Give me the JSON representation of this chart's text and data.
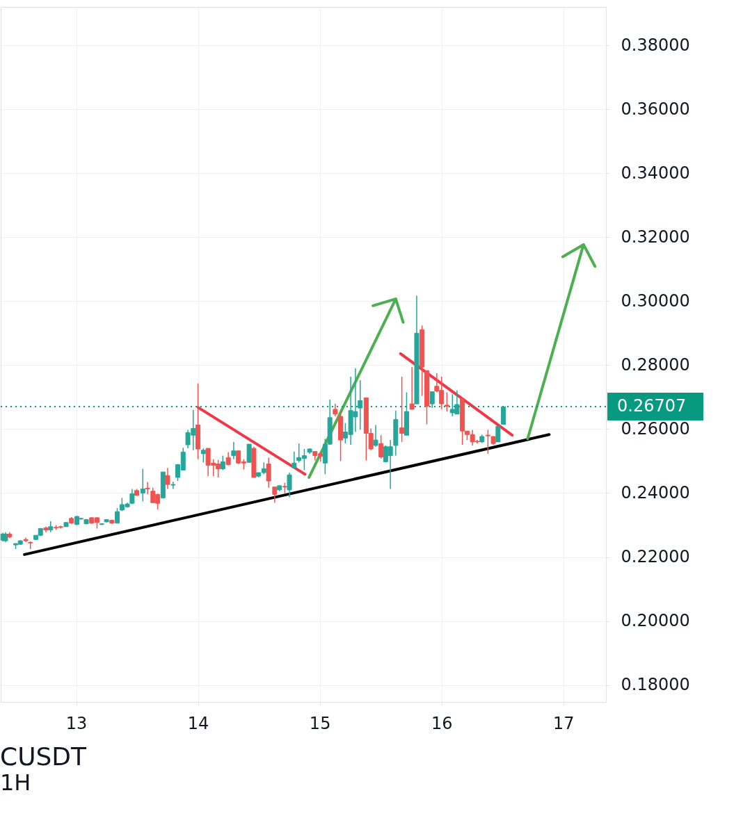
{
  "chart_data": {
    "type": "candlestick",
    "title": "CUSDT",
    "subtitle": "1H",
    "xlim": [
      12.38,
      17.35
    ],
    "xticks": [
      13,
      14,
      15,
      16,
      17
    ],
    "ylim": [
      0.1747,
      0.392
    ],
    "yticks": [
      {
        "value": 0.18,
        "label": "0.18000"
      },
      {
        "value": 0.2,
        "label": "0.20000"
      },
      {
        "value": 0.22,
        "label": "0.22000"
      },
      {
        "value": 0.24,
        "label": "0.24000"
      },
      {
        "value": 0.26,
        "label": "0.26000"
      },
      {
        "value": 0.28,
        "label": "0.28000"
      },
      {
        "value": 0.3,
        "label": "0.30000"
      },
      {
        "value": 0.32,
        "label": "0.32000"
      },
      {
        "value": 0.34,
        "label": "0.34000"
      },
      {
        "value": 0.36,
        "label": "0.36000"
      },
      {
        "value": 0.38,
        "label": "0.38000"
      }
    ],
    "grid": true,
    "x": [
      12.398,
      12.42,
      12.453,
      12.503,
      12.541,
      12.586,
      12.624,
      12.669,
      12.707,
      12.751,
      12.79,
      12.834,
      12.873,
      12.917,
      12.961,
      13.006,
      13.039,
      13.083,
      13.127,
      13.171,
      13.21,
      13.249,
      13.293,
      13.337,
      13.376,
      13.42,
      13.459,
      13.497,
      13.547,
      13.586,
      13.63,
      13.669,
      13.713,
      13.751,
      13.796,
      13.834,
      13.878,
      13.917,
      13.961,
      14.0,
      14.044,
      14.083,
      14.127,
      14.166,
      14.204,
      14.249,
      14.293,
      14.332,
      14.376,
      14.42,
      14.459,
      14.497,
      14.541,
      14.58,
      14.63,
      14.669,
      14.713,
      14.751,
      14.79,
      14.829,
      14.873,
      14.917,
      14.961,
      15.006,
      15.044,
      15.083,
      15.127,
      15.171,
      15.21,
      15.254,
      15.293,
      15.332,
      15.381,
      15.42,
      15.459,
      15.503,
      15.541,
      15.58,
      15.624,
      15.674,
      15.713,
      15.757,
      15.796,
      15.84,
      15.879,
      15.923,
      15.961,
      16.0,
      16.044,
      16.089,
      16.127,
      16.171,
      16.21,
      16.254,
      16.293,
      16.332,
      16.381,
      16.425,
      16.464,
      16.508
    ],
    "ohlc": [
      [
        0.2253,
        0.2276,
        0.2249,
        0.2272
      ],
      [
        0.2251,
        0.2278,
        0.2246,
        0.2272
      ],
      [
        0.2272,
        0.2278,
        0.2259,
        0.2263
      ],
      [
        0.2238,
        0.2244,
        0.2225,
        0.2242
      ],
      [
        0.224,
        0.2253,
        0.2238,
        0.2251
      ],
      [
        0.2255,
        0.2261,
        0.2246,
        0.2251
      ],
      [
        0.2246,
        0.2249,
        0.2225,
        0.2244
      ],
      [
        0.2255,
        0.2268,
        0.2253,
        0.2268
      ],
      [
        0.2268,
        0.2291,
        0.2266,
        0.2289
      ],
      [
        0.2291,
        0.2295,
        0.2278,
        0.2285
      ],
      [
        0.2285,
        0.2312,
        0.2278,
        0.2295
      ],
      [
        0.2293,
        0.23,
        0.2285,
        0.2291
      ],
      [
        0.2295,
        0.2298,
        0.2289,
        0.2293
      ],
      [
        0.2295,
        0.231,
        0.2295,
        0.2308
      ],
      [
        0.2321,
        0.2325,
        0.2304,
        0.2306
      ],
      [
        0.2302,
        0.2329,
        0.23,
        0.2327
      ],
      [
        0.2319,
        0.2323,
        0.2317,
        0.2321
      ],
      [
        0.2304,
        0.2319,
        0.2302,
        0.2317
      ],
      [
        0.2323,
        0.2325,
        0.2304,
        0.2306
      ],
      [
        0.2323,
        0.2325,
        0.2289,
        0.2308
      ],
      [
        0.2302,
        0.2306,
        0.23,
        0.2304
      ],
      [
        0.231,
        0.2317,
        0.2308,
        0.2317
      ],
      [
        0.2315,
        0.2317,
        0.2304,
        0.2306
      ],
      [
        0.2306,
        0.2353,
        0.2306,
        0.2342
      ],
      [
        0.2347,
        0.2385,
        0.2344,
        0.2364
      ],
      [
        0.2357,
        0.237,
        0.2355,
        0.2366
      ],
      [
        0.2368,
        0.2413,
        0.2366,
        0.2398
      ],
      [
        0.2408,
        0.2413,
        0.2391,
        0.2393
      ],
      [
        0.24,
        0.2476,
        0.2374,
        0.2413
      ],
      [
        0.2415,
        0.2434,
        0.2396,
        0.2413
      ],
      [
        0.2406,
        0.2417,
        0.237,
        0.237
      ],
      [
        0.2396,
        0.2398,
        0.2349,
        0.2368
      ],
      [
        0.2385,
        0.2466,
        0.2385,
        0.2466
      ],
      [
        0.2455,
        0.2479,
        0.2413,
        0.2427
      ],
      [
        0.2425,
        0.2436,
        0.2413,
        0.2427
      ],
      [
        0.2449,
        0.2491,
        0.2438,
        0.2489
      ],
      [
        0.2472,
        0.2542,
        0.2472,
        0.2528
      ],
      [
        0.2551,
        0.2598,
        0.254,
        0.2589
      ],
      [
        0.2581,
        0.266,
        0.2534,
        0.2602
      ],
      [
        0.2613,
        0.2743,
        0.2506,
        0.2538
      ],
      [
        0.2523,
        0.254,
        0.2496,
        0.2534
      ],
      [
        0.254,
        0.254,
        0.2453,
        0.2487
      ],
      [
        0.2494,
        0.2506,
        0.2453,
        0.2487
      ],
      [
        0.2491,
        0.2504,
        0.2449,
        0.2476
      ],
      [
        0.2476,
        0.2517,
        0.2472,
        0.2498
      ],
      [
        0.2511,
        0.2528,
        0.2487,
        0.2489
      ],
      [
        0.2517,
        0.256,
        0.2506,
        0.2532
      ],
      [
        0.2532,
        0.2532,
        0.2491,
        0.2494
      ],
      [
        0.2498,
        0.2506,
        0.2474,
        0.2494
      ],
      [
        0.2496,
        0.2553,
        0.2496,
        0.2553
      ],
      [
        0.254,
        0.2545,
        0.2449,
        0.2449
      ],
      [
        0.2453,
        0.2464,
        0.2449,
        0.2464
      ],
      [
        0.2464,
        0.2496,
        0.2459,
        0.2476
      ],
      [
        0.2491,
        0.2511,
        0.2417,
        0.2438
      ],
      [
        0.2419,
        0.2419,
        0.237,
        0.2396
      ],
      [
        0.241,
        0.2425,
        0.2406,
        0.2423
      ],
      [
        0.2421,
        0.2432,
        0.24,
        0.2419
      ],
      [
        0.241,
        0.2464,
        0.2387,
        0.2457
      ],
      [
        0.2479,
        0.253,
        0.2476,
        0.2494
      ],
      [
        0.2502,
        0.2555,
        0.2496,
        0.2511
      ],
      [
        0.2508,
        0.2538,
        0.2472,
        0.2517
      ],
      [
        0.2528,
        0.254,
        0.2523,
        0.2538
      ],
      [
        0.253,
        0.253,
        0.2502,
        0.2517
      ],
      [
        0.2523,
        0.2528,
        0.2498,
        0.2515
      ],
      [
        0.2494,
        0.257,
        0.2459,
        0.2553
      ],
      [
        0.2553,
        0.2692,
        0.2551,
        0.2636
      ],
      [
        0.2662,
        0.2679,
        0.264,
        0.2647
      ],
      [
        0.264,
        0.2658,
        0.25,
        0.2566
      ],
      [
        0.2572,
        0.2619,
        0.2555,
        0.2591
      ],
      [
        0.2583,
        0.2764,
        0.2551,
        0.2658
      ],
      [
        0.2638,
        0.279,
        0.2591,
        0.2655
      ],
      [
        0.2666,
        0.2753,
        0.2598,
        0.2689
      ],
      [
        0.2698,
        0.2698,
        0.2502,
        0.2587
      ],
      [
        0.2587,
        0.2602,
        0.2534,
        0.2538
      ],
      [
        0.2549,
        0.2613,
        0.2545,
        0.2566
      ],
      [
        0.2555,
        0.2581,
        0.2508,
        0.2513
      ],
      [
        0.2498,
        0.2549,
        0.2498,
        0.2545
      ],
      [
        0.2517,
        0.2566,
        0.2413,
        0.2545
      ],
      [
        0.2549,
        0.2658,
        0.2517,
        0.263
      ],
      [
        0.2604,
        0.2764,
        0.256,
        0.2587
      ],
      [
        0.2581,
        0.2715,
        0.2581,
        0.2655
      ],
      [
        0.2679,
        0.2794,
        0.2662,
        0.2662
      ],
      [
        0.2679,
        0.3017,
        0.2679,
        0.29
      ],
      [
        0.2911,
        0.2924,
        0.2704,
        0.2794
      ],
      [
        0.2783,
        0.2783,
        0.2615,
        0.2672
      ],
      [
        0.2679,
        0.2717,
        0.2666,
        0.2717
      ],
      [
        0.2734,
        0.2775,
        0.2715,
        0.2719
      ],
      [
        0.2721,
        0.2764,
        0.2662,
        0.2679
      ],
      [
        0.2675,
        0.2715,
        0.2655,
        0.2672
      ],
      [
        0.2651,
        0.2709,
        0.264,
        0.2662
      ],
      [
        0.2647,
        0.2721,
        0.2647,
        0.2677
      ],
      [
        0.2696,
        0.2696,
        0.2551,
        0.2594
      ],
      [
        0.2594,
        0.2594,
        0.2566,
        0.2583
      ],
      [
        0.2583,
        0.2598,
        0.2549,
        0.256
      ],
      [
        0.2562,
        0.2566,
        0.2555,
        0.256
      ],
      [
        0.256,
        0.2583,
        0.2557,
        0.2577
      ],
      [
        0.2581,
        0.2598,
        0.2523,
        0.2579
      ],
      [
        0.2577,
        0.2577,
        0.2551,
        0.2555
      ],
      [
        0.256,
        0.2609,
        0.256,
        0.2609
      ],
      [
        0.2615,
        0.267,
        0.2615,
        0.267
      ]
    ],
    "colors": [
      "#26a69a",
      "#26a69a",
      "#ef5350",
      "#26a69a",
      "#26a69a",
      "#ef5350",
      "#ef5350",
      "#26a69a",
      "#26a69a",
      "#ef5350",
      "#26a69a",
      "#ef5350",
      "#ef5350",
      "#26a69a",
      "#ef5350",
      "#26a69a",
      "#26a69a",
      "#26a69a",
      "#ef5350",
      "#ef5350",
      "#26a69a",
      "#26a69a",
      "#ef5350",
      "#26a69a",
      "#26a69a",
      "#26a69a",
      "#26a69a",
      "#ef5350",
      "#26a69a",
      "#ef5350",
      "#ef5350",
      "#ef5350",
      "#26a69a",
      "#ef5350",
      "#26a69a",
      "#26a69a",
      "#26a69a",
      "#26a69a",
      "#26a69a",
      "#ef5350",
      "#26a69a",
      "#ef5350",
      "#ef5350",
      "#ef5350",
      "#26a69a",
      "#ef5350",
      "#26a69a",
      "#ef5350",
      "#ef5350",
      "#26a69a",
      "#ef5350",
      "#26a69a",
      "#26a69a",
      "#ef5350",
      "#ef5350",
      "#26a69a",
      "#ef5350",
      "#26a69a",
      "#26a69a",
      "#26a69a",
      "#26a69a",
      "#26a69a",
      "#ef5350",
      "#ef5350",
      "#26a69a",
      "#26a69a",
      "#ef5350",
      "#ef5350",
      "#26a69a",
      "#26a69a",
      "#26a69a",
      "#26a69a",
      "#ef5350",
      "#ef5350",
      "#26a69a",
      "#ef5350",
      "#26a69a",
      "#26a69a",
      "#26a69a",
      "#ef5350",
      "#26a69a",
      "#ef5350",
      "#26a69a",
      "#ef5350",
      "#ef5350",
      "#26a69a",
      "#ef5350",
      "#ef5350",
      "#ef5350",
      "#26a69a",
      "#26a69a",
      "#ef5350",
      "#ef5350",
      "#ef5350",
      "#ef5350",
      "#26a69a",
      "#ef5350",
      "#ef5350",
      "#26a69a",
      "#26a69a"
    ],
    "series": [
      {
        "type": "line",
        "color": "#000000",
        "x": [
          12.575,
          16.884
        ],
        "values": [
          0.2208,
          0.2583
        ]
      },
      {
        "type": "line",
        "color": "#f23645",
        "x": [
          14.0,
          14.879
        ],
        "values": [
          0.2668,
          0.2459
        ]
      },
      {
        "type": "line",
        "color": "#f23645",
        "x": [
          15.663,
          16.58
        ],
        "values": [
          0.2836,
          0.2581
        ]
      },
      {
        "type": "line",
        "color": "#4caf50",
        "x": [
          14.912,
          15.624,
          15.437,
          15.624,
          15.685
        ],
        "values": [
          0.2449,
          0.3007,
          0.2986,
          0.3007,
          0.2934
        ]
      },
      {
        "type": "line",
        "color": "#4caf50",
        "x": [
          16.707,
          17.166,
          16.995,
          17.166,
          17.26
        ],
        "values": [
          0.257,
          0.3177,
          0.3139,
          0.3177,
          0.3109
        ]
      }
    ],
    "ref_lines": [
      {
        "axis": "y",
        "value": 0.26707,
        "label": "0.26707",
        "color": "#089981",
        "line_style": "dotted"
      }
    ]
  }
}
